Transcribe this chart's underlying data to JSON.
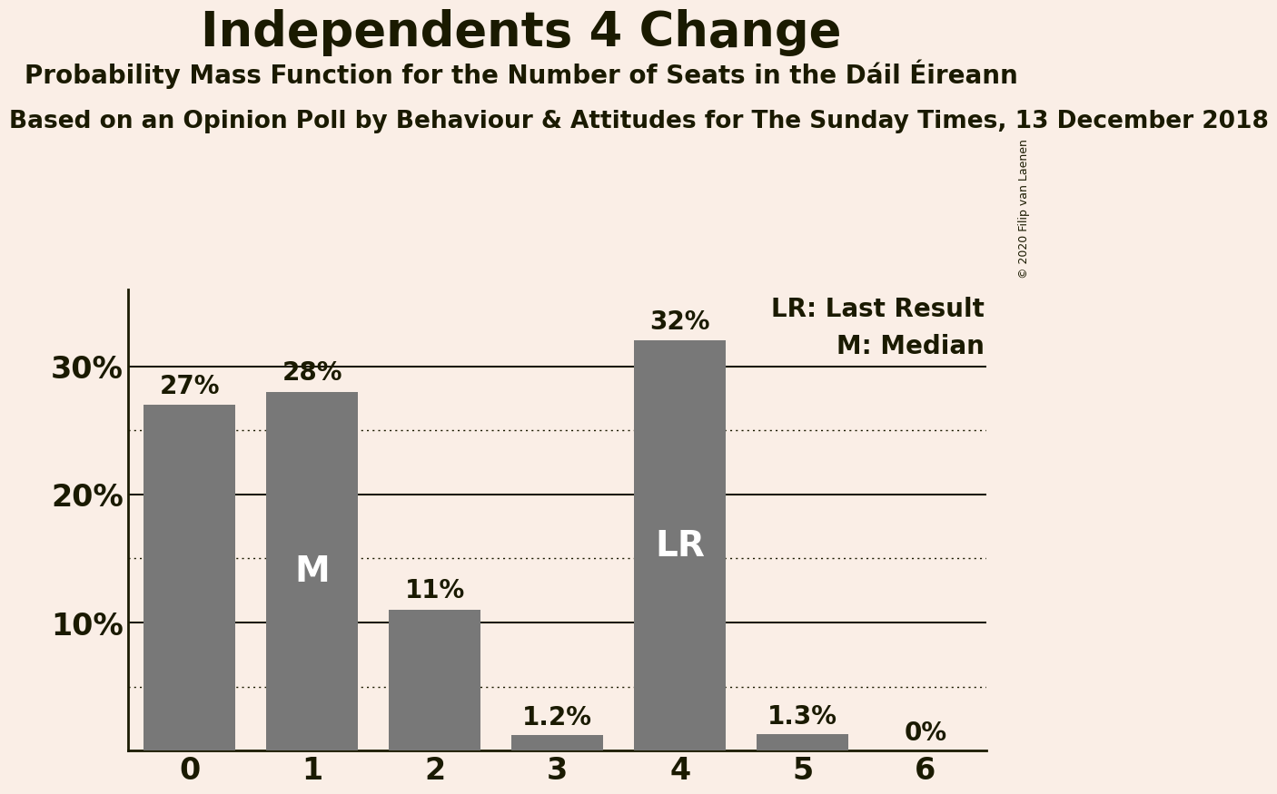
{
  "title": "Independents 4 Change",
  "subtitle": "Probability Mass Function for the Number of Seats in the Dáil Éireann",
  "source_line": "Based on an Opinion Poll by Behaviour & Attitudes for The Sunday Times, 13 December 2018",
  "copyright": "© 2020 Filip van Laenen",
  "categories": [
    0,
    1,
    2,
    3,
    4,
    5,
    6
  ],
  "values": [
    0.27,
    0.28,
    0.11,
    0.012,
    0.32,
    0.013,
    0.0
  ],
  "bar_labels": [
    "27%",
    "28%",
    "11%",
    "1.2%",
    "32%",
    "1.3%",
    "0%"
  ],
  "bar_color": "#787878",
  "background_color": "#faeee6",
  "text_color": "#1a1a00",
  "median_bar": 1,
  "last_result_bar": 4,
  "legend_lr": "LR: Last Result",
  "legend_m": "M: Median",
  "ylim": [
    0,
    0.36
  ],
  "yticks": [
    0.1,
    0.2,
    0.3
  ],
  "ytick_labels": [
    "10%",
    "20%",
    "30%"
  ],
  "solid_gridlines": [
    0.1,
    0.2,
    0.3
  ],
  "dotted_gridlines": [
    0.05,
    0.15,
    0.25
  ]
}
